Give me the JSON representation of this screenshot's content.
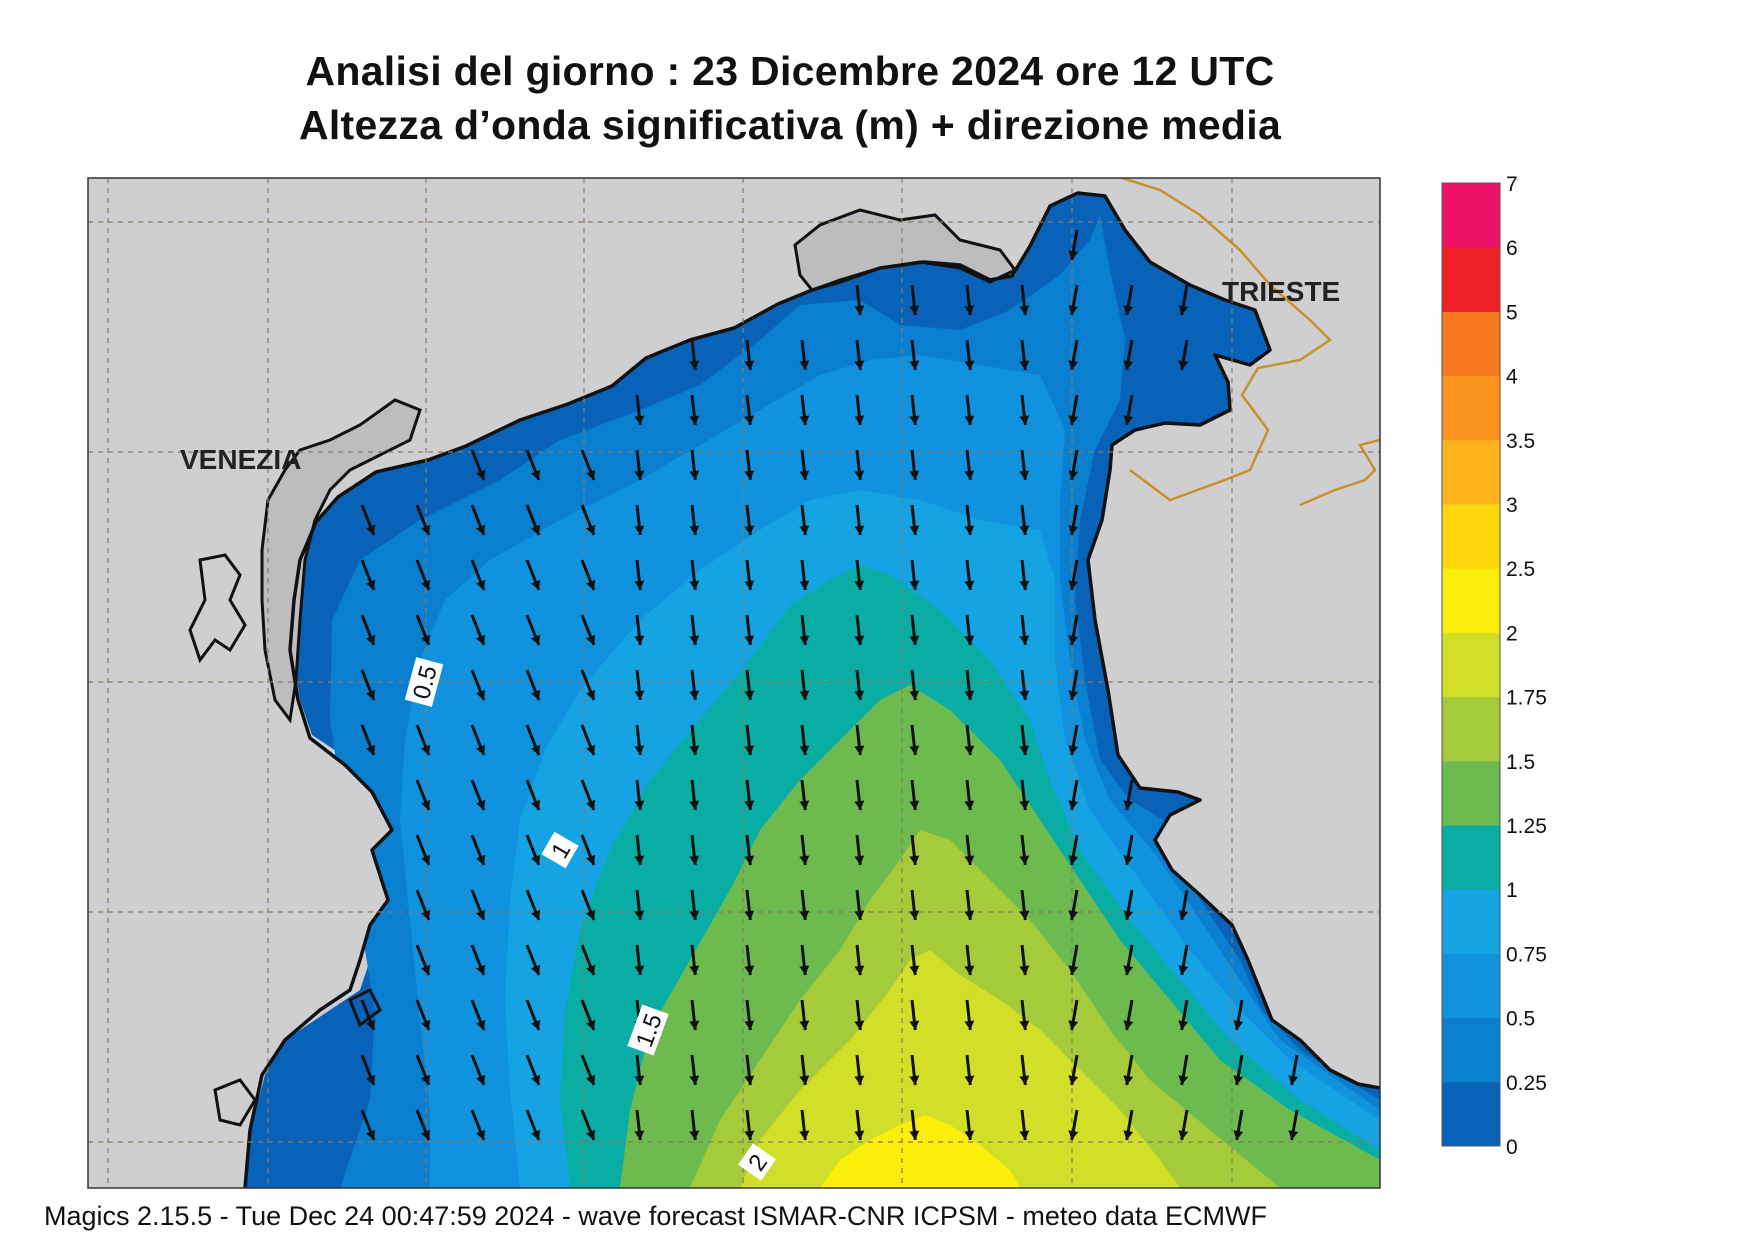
{
  "title_line1": "Analisi del giorno :  23 Dicembre  2024   ore 12 UTC",
  "title_line2": "Altezza d’onda significativa (m) + direzione media",
  "footer": "Magics 2.15.5 - Tue Dec 24 00:47:59 2024 - wave forecast  ISMAR-CNR  ICPSM - meteo data   ECMWF",
  "map": {
    "place_labels": [
      "VENEZIA",
      "TRIESTE"
    ],
    "contour_labels": [
      "0.5",
      "1",
      "1.5",
      "2"
    ],
    "land_color": "#cfcfd1",
    "coast_color": "#111111",
    "border_color": "#c8902a",
    "arrow_direction": "south"
  },
  "legend": {
    "levels": [
      "0",
      "0.25",
      "0.5",
      "0.75",
      "1",
      "1.25",
      "1.5",
      "1.75",
      "2",
      "2.5",
      "3",
      "3.5",
      "4",
      "5",
      "6",
      "7"
    ],
    "colors": [
      "#0862b8",
      "#0a7fcf",
      "#1092de",
      "#15a3e3",
      "#0aada4",
      "#6dbb4f",
      "#a5cb3a",
      "#d2df28",
      "#fbee0a",
      "#fed80d",
      "#feb21c",
      "#fd9621",
      "#f87721",
      "#ee2226",
      "#eb1267"
    ]
  }
}
